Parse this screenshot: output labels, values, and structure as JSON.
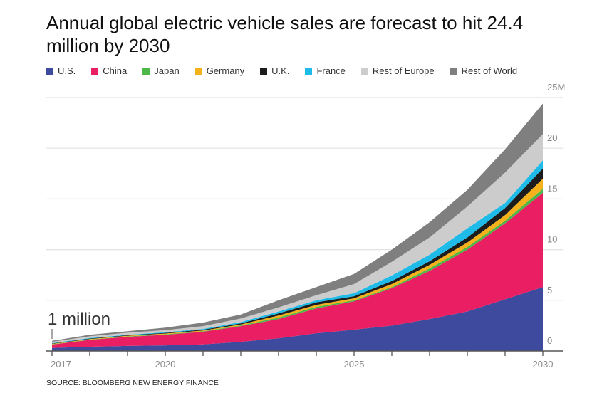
{
  "chart_data": {
    "type": "area",
    "stacked": true,
    "title": "Annual global electric vehicle sales are forecast to hit 24.4 million by 2030",
    "x": [
      2017,
      2018,
      2019,
      2020,
      2021,
      2022,
      2023,
      2024,
      2025,
      2026,
      2027,
      2028,
      2029,
      2030
    ],
    "x_tick_labels": [
      "2017",
      "2020",
      "2025",
      "2030"
    ],
    "y_tick_labels": [
      "0",
      "5",
      "10",
      "15",
      "20",
      "25M"
    ],
    "ylim": [
      0,
      25
    ],
    "grid": true,
    "legend_position": "top",
    "series": [
      {
        "name": "U.S.",
        "color": "#3d4a9e",
        "values": [
          0.3,
          0.42,
          0.5,
          0.55,
          0.65,
          0.9,
          1.25,
          1.75,
          2.1,
          2.5,
          3.15,
          3.9,
          5.1,
          6.3
        ]
      },
      {
        "name": "China",
        "color": "#ea1f63",
        "values": [
          0.33,
          0.68,
          0.9,
          1.05,
          1.25,
          1.55,
          1.9,
          2.45,
          2.8,
          3.7,
          4.75,
          6.1,
          7.5,
          9.3
        ]
      },
      {
        "name": "Japan",
        "color": "#4db748",
        "values": [
          0.03,
          0.03,
          0.04,
          0.05,
          0.05,
          0.07,
          0.15,
          0.15,
          0.1,
          0.1,
          0.25,
          0.25,
          0.25,
          0.4
        ]
      },
      {
        "name": "Germany",
        "color": "#f6b21b",
        "values": [
          0.04,
          0.05,
          0.06,
          0.07,
          0.07,
          0.1,
          0.2,
          0.2,
          0.2,
          0.3,
          0.35,
          0.45,
          0.55,
          1.0
        ]
      },
      {
        "name": "U.K.",
        "color": "#1c1c1c",
        "values": [
          0.04,
          0.05,
          0.05,
          0.06,
          0.08,
          0.1,
          0.2,
          0.25,
          0.2,
          0.3,
          0.35,
          0.5,
          0.7,
          1.0
        ]
      },
      {
        "name": "France",
        "color": "#1fbbe8",
        "values": [
          0.04,
          0.05,
          0.05,
          0.07,
          0.08,
          0.13,
          0.2,
          0.2,
          0.3,
          0.55,
          0.65,
          0.9,
          0.5,
          0.8
        ]
      },
      {
        "name": "Rest of Europe",
        "color": "#cccccc",
        "values": [
          0.12,
          0.17,
          0.2,
          0.2,
          0.27,
          0.35,
          0.4,
          0.5,
          0.9,
          1.35,
          1.7,
          2.15,
          3.0,
          2.6
        ]
      },
      {
        "name": "Rest of World",
        "color": "#7f7f7f",
        "values": [
          0.1,
          0.15,
          0.15,
          0.25,
          0.35,
          0.4,
          0.7,
          0.8,
          1.0,
          1.2,
          1.5,
          1.65,
          2.3,
          3.0
        ]
      }
    ],
    "annotations": [
      "1 million"
    ],
    "source": "SOURCE: BLOOMBERG NEW ENERGY FINANCE"
  }
}
